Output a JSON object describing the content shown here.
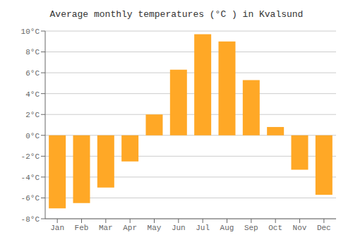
{
  "chart_data": {
    "type": "bar",
    "title": "Average monthly temperatures (°C ) in Kvalsund",
    "categories": [
      "Jan",
      "Feb",
      "Mar",
      "Apr",
      "May",
      "Jun",
      "Jul",
      "Aug",
      "Sep",
      "Oct",
      "Nov",
      "Dec"
    ],
    "values": [
      -7.0,
      -6.5,
      -5.0,
      -2.5,
      2.0,
      6.3,
      9.7,
      9.0,
      5.3,
      0.8,
      -3.3,
      -5.7
    ],
    "color": "#FFA826",
    "ylim": [
      -8,
      10
    ],
    "yticks": [
      {
        "value": -8,
        "label": "-8°C"
      },
      {
        "value": -6,
        "label": "-6°C"
      },
      {
        "value": -4,
        "label": "-4°C"
      },
      {
        "value": -2,
        "label": "-2°C"
      },
      {
        "value": 0,
        "label": "0°C"
      },
      {
        "value": 2,
        "label": "2°C"
      },
      {
        "value": 4,
        "label": "4°C"
      },
      {
        "value": 6,
        "label": "6°C"
      },
      {
        "value": 8,
        "label": "8°C"
      },
      {
        "value": 10,
        "label": "10°C"
      }
    ],
    "grid": true
  }
}
